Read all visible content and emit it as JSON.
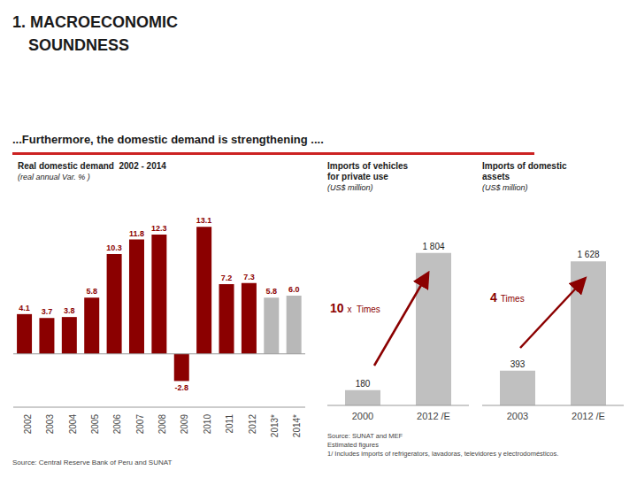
{
  "title": "1. MACROECONOMIC\nSOUNDNESS",
  "subtitle": "...Furthermore, the domestic demand is strengthening ....",
  "chart_data": [
    {
      "type": "bar",
      "title": "Real domestic demand  2002 - 2014",
      "subtitle": "(real annual Var. % )",
      "categories": [
        "2002",
        "2003",
        "2004",
        "2005",
        "2006",
        "2007",
        "2008",
        "2009",
        "2010",
        "2011",
        "2012",
        "2013*",
        "2014*"
      ],
      "values": [
        4.1,
        3.7,
        3.8,
        5.8,
        10.3,
        11.8,
        12.3,
        -2.8,
        13.1,
        7.2,
        7.3,
        5.8,
        6.0
      ],
      "value_labels": [
        "4.1",
        "3.7",
        "3.8",
        "5.8",
        "10.3",
        "11.8",
        "12.3",
        "-2.8",
        "13.1",
        "7.2",
        "7.3",
        "5.8",
        "6.0"
      ],
      "colors": [
        "#8B0000",
        "#8B0000",
        "#8B0000",
        "#8B0000",
        "#8B0000",
        "#8B0000",
        "#8B0000",
        "#8B0000",
        "#8B0000",
        "#8B0000",
        "#8B0000",
        "#B8B8B8",
        "#B8B8B8"
      ],
      "ylim": [
        -5.5,
        15.5
      ],
      "data_labels": true,
      "tick_labels": "x",
      "grid": false,
      "source": "Source: Central Reserve Bank of Peru and SUNAT"
    },
    {
      "type": "bar",
      "title": "Imports of vehicles\nfor private use",
      "subtitle": "(US$ million)",
      "categories": [
        "2000",
        "2012 /E"
      ],
      "values": [
        180,
        1804
      ],
      "value_labels": [
        "180",
        "1 804"
      ],
      "color": "#C0C0C0",
      "ylim": [
        0,
        2200
      ],
      "data_labels": true,
      "tick_labels": "x",
      "grid": false,
      "annotations": [
        "10",
        "x  Times"
      ],
      "source": "Source: SUNAT and MEF\nEstimated figures\n1/ Includes imports of refrigerators, lavadoras, televidores y electrodomésticos."
    },
    {
      "type": "bar",
      "title": "Imports of domestic\nassets",
      "subtitle": "(US$ million)",
      "categories": [
        "2003",
        "2012 /E"
      ],
      "values": [
        393,
        1628
      ],
      "value_labels": [
        "393",
        "1 628"
      ],
      "color": "#C0C0C0",
      "ylim": [
        0,
        2100
      ],
      "data_labels": true,
      "tick_labels": "x",
      "grid": false,
      "annotations": [
        "4",
        "Times"
      ]
    }
  ]
}
